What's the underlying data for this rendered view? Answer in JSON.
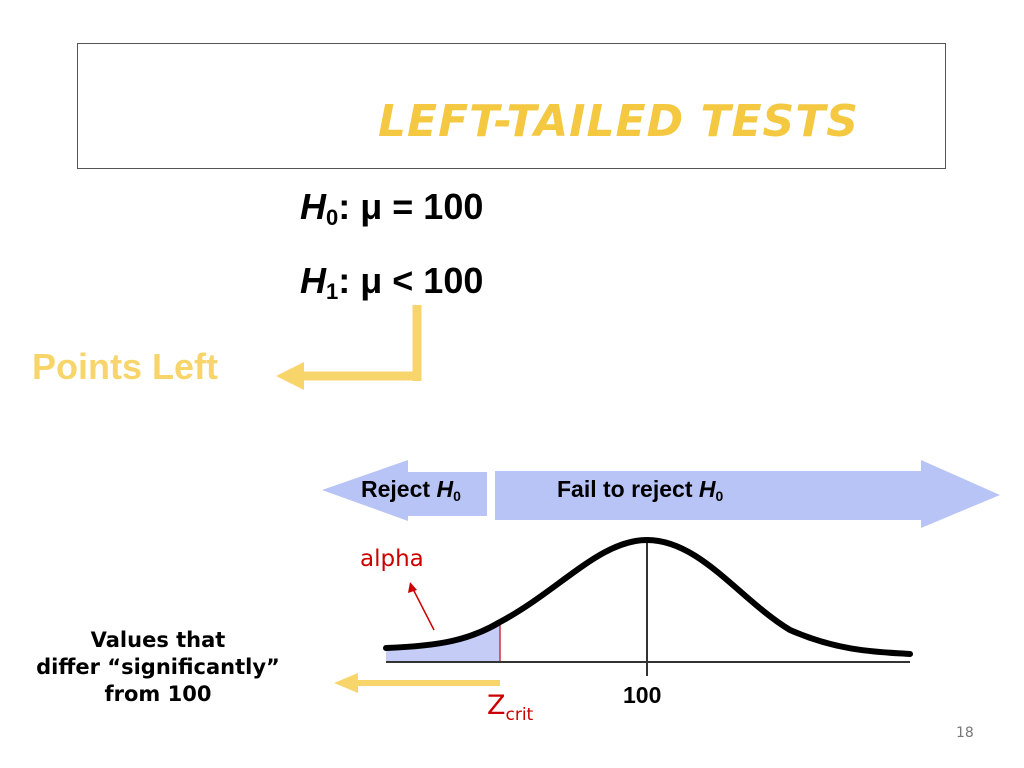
{
  "slide": {
    "title": "LEFT-TAILED TESTS",
    "page_number": "18"
  },
  "hypotheses": {
    "h0": {
      "symbol": "H",
      "subscript": "0",
      "relation": ": μ = 100"
    },
    "h1": {
      "symbol": "H",
      "subscript": "1",
      "relation": ": μ < 100"
    }
  },
  "annotation": {
    "points_left": "Points Left"
  },
  "regions": {
    "reject": {
      "text": "Reject ",
      "symbol": "H",
      "subscript": "0"
    },
    "fail": {
      "text": "Fail to reject ",
      "symbol": "H",
      "subscript": "0"
    }
  },
  "curve_labels": {
    "alpha": "alpha",
    "critical_value": {
      "main": "Z",
      "subscript": "crit"
    },
    "mean": "100"
  },
  "note": {
    "line1": "Values that",
    "line2": "differ “significantly”",
    "line3": "from 100"
  },
  "colors": {
    "title": "#f5c842",
    "yellow_arrow": "#f7d56b",
    "region_arrow_fill": "#b8c4f5",
    "alpha_shade": "#c5ccf5",
    "accent_red": "#cc0000"
  }
}
